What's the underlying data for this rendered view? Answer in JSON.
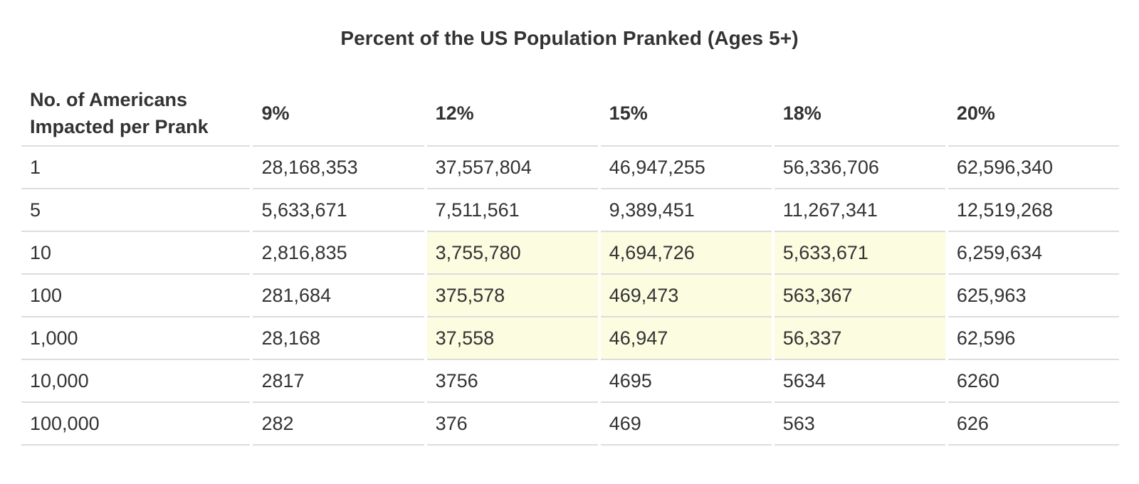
{
  "chart_data": {
    "type": "table",
    "title": "Percent of the US Population Pranked (Ages 5+)",
    "row_header_label": "No. of Americans Impacted per Prank",
    "columns": [
      "9%",
      "12%",
      "15%",
      "18%",
      "20%"
    ],
    "rows": [
      {
        "label": "1",
        "values": [
          "28,168,353",
          "37,557,804",
          "46,947,255",
          "56,336,706",
          "62,596,340"
        ],
        "highlight": [
          false,
          false,
          false,
          false,
          false
        ]
      },
      {
        "label": "5",
        "values": [
          "5,633,671",
          "7,511,561",
          "9,389,451",
          "11,267,341",
          "12,519,268"
        ],
        "highlight": [
          false,
          false,
          false,
          false,
          false
        ]
      },
      {
        "label": "10",
        "values": [
          "2,816,835",
          "3,755,780",
          "4,694,726",
          "5,633,671",
          "6,259,634"
        ],
        "highlight": [
          false,
          true,
          true,
          true,
          false
        ]
      },
      {
        "label": "100",
        "values": [
          "281,684",
          "375,578",
          "469,473",
          "563,367",
          "625,963"
        ],
        "highlight": [
          false,
          true,
          true,
          true,
          false
        ]
      },
      {
        "label": "1,000",
        "values": [
          "28,168",
          "37,558",
          "46,947",
          "56,337",
          "62,596"
        ],
        "highlight": [
          false,
          true,
          true,
          true,
          false
        ]
      },
      {
        "label": "10,000",
        "values": [
          "2817",
          "3756",
          "4695",
          "5634",
          "6260"
        ],
        "highlight": [
          false,
          false,
          false,
          false,
          false
        ]
      },
      {
        "label": "100,000",
        "values": [
          "282",
          "376",
          "469",
          "563",
          "626"
        ],
        "highlight": [
          false,
          false,
          false,
          false,
          false
        ]
      }
    ]
  },
  "colors": {
    "text": "#333333",
    "rule": "#dddddd",
    "highlight": "#fbfce0",
    "background": "#ffffff"
  }
}
